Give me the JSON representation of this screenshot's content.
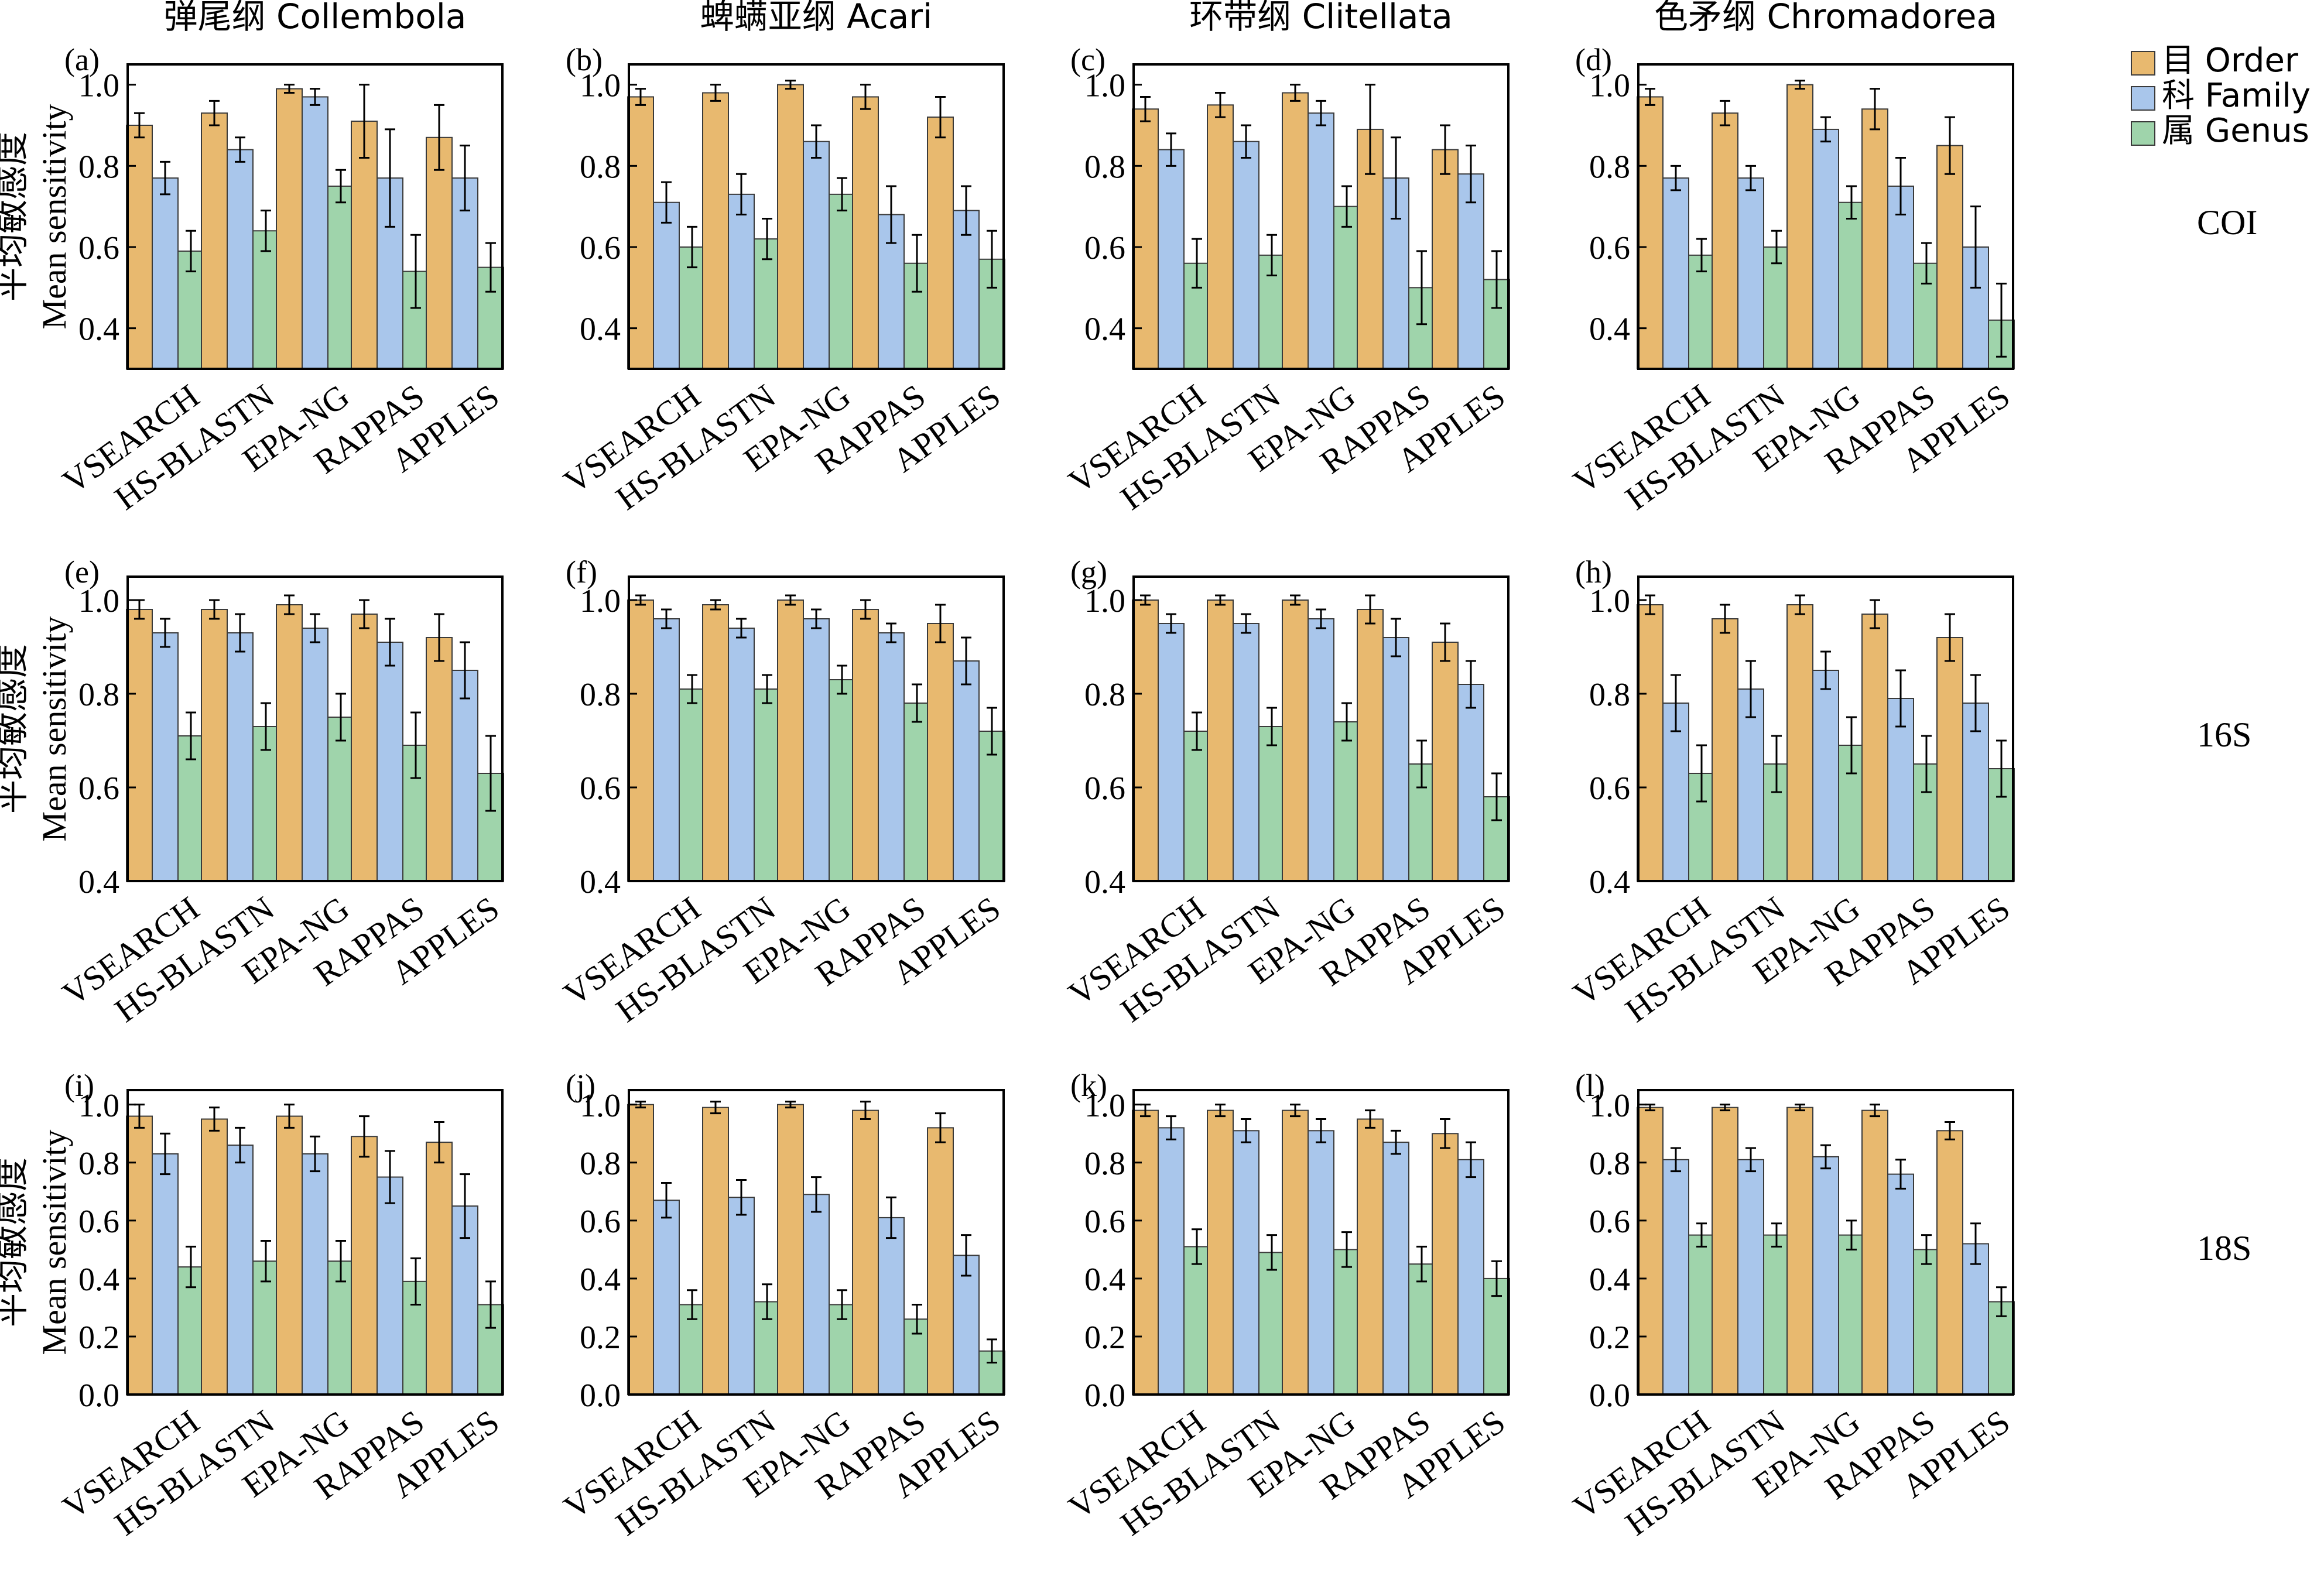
{
  "figure": {
    "column_titles": [
      "弹尾纲 Collembola",
      "蜱螨亚纲 Acari",
      "环带纲 Clitellata",
      "色矛纲 Chromadorea"
    ],
    "row_labels": [
      "COI",
      "16S",
      "18S"
    ],
    "ylabel_cn": "平均敏感度",
    "ylabel_en": "Mean sensitivity",
    "legend": [
      {
        "key": "order",
        "label": "目 Order",
        "color": "#E8B96F"
      },
      {
        "key": "family",
        "label": "科 Family",
        "color": "#A9C6EB"
      },
      {
        "key": "genus",
        "label": "属 Genus",
        "color": "#9FD4AB"
      }
    ]
  },
  "chart_data": [
    {
      "panel": "(a)",
      "type": "bar",
      "categories": [
        "VSEARCH",
        "HS-BLASTN",
        "EPA-NG",
        "RAPPAS",
        "APPLES"
      ],
      "ylim": [
        0.3,
        1.05
      ],
      "yticks": [
        0.4,
        0.6,
        0.8,
        1.0
      ],
      "series": [
        {
          "name": "目 Order",
          "values": [
            0.9,
            0.93,
            0.99,
            0.91,
            0.87
          ],
          "errors": [
            0.03,
            0.03,
            0.01,
            0.09,
            0.08
          ]
        },
        {
          "name": "科 Family",
          "values": [
            0.77,
            0.84,
            0.97,
            0.77,
            0.77
          ],
          "errors": [
            0.04,
            0.03,
            0.02,
            0.12,
            0.08
          ]
        },
        {
          "name": "属 Genus",
          "values": [
            0.59,
            0.64,
            0.75,
            0.54,
            0.55
          ],
          "errors": [
            0.05,
            0.05,
            0.04,
            0.09,
            0.06
          ]
        }
      ]
    },
    {
      "panel": "(b)",
      "type": "bar",
      "categories": [
        "VSEARCH",
        "HS-BLASTN",
        "EPA-NG",
        "RAPPAS",
        "APPLES"
      ],
      "ylim": [
        0.3,
        1.05
      ],
      "yticks": [
        0.4,
        0.6,
        0.8,
        1.0
      ],
      "series": [
        {
          "name": "目 Order",
          "values": [
            0.97,
            0.98,
            1.0,
            0.97,
            0.92
          ],
          "errors": [
            0.02,
            0.02,
            0.01,
            0.03,
            0.05
          ]
        },
        {
          "name": "科 Family",
          "values": [
            0.71,
            0.73,
            0.86,
            0.68,
            0.69
          ],
          "errors": [
            0.05,
            0.05,
            0.04,
            0.07,
            0.06
          ]
        },
        {
          "name": "属 Genus",
          "values": [
            0.6,
            0.62,
            0.73,
            0.56,
            0.57
          ],
          "errors": [
            0.05,
            0.05,
            0.04,
            0.07,
            0.07
          ]
        }
      ]
    },
    {
      "panel": "(c)",
      "type": "bar",
      "categories": [
        "VSEARCH",
        "HS-BLASTN",
        "EPA-NG",
        "RAPPAS",
        "APPLES"
      ],
      "ylim": [
        0.3,
        1.05
      ],
      "yticks": [
        0.4,
        0.6,
        0.8,
        1.0
      ],
      "series": [
        {
          "name": "目 Order",
          "values": [
            0.94,
            0.95,
            0.98,
            0.89,
            0.84
          ],
          "errors": [
            0.03,
            0.03,
            0.02,
            0.11,
            0.06
          ]
        },
        {
          "name": "科 Family",
          "values": [
            0.84,
            0.86,
            0.93,
            0.77,
            0.78
          ],
          "errors": [
            0.04,
            0.04,
            0.03,
            0.1,
            0.07
          ]
        },
        {
          "name": "属 Genus",
          "values": [
            0.56,
            0.58,
            0.7,
            0.5,
            0.52
          ],
          "errors": [
            0.06,
            0.05,
            0.05,
            0.09,
            0.07
          ]
        }
      ]
    },
    {
      "panel": "(d)",
      "type": "bar",
      "categories": [
        "VSEARCH",
        "HS-BLASTN",
        "EPA-NG",
        "RAPPAS",
        "APPLES"
      ],
      "ylim": [
        0.3,
        1.05
      ],
      "yticks": [
        0.4,
        0.6,
        0.8,
        1.0
      ],
      "series": [
        {
          "name": "目 Order",
          "values": [
            0.97,
            0.93,
            1.0,
            0.94,
            0.85
          ],
          "errors": [
            0.02,
            0.03,
            0.01,
            0.05,
            0.07
          ]
        },
        {
          "name": "科 Family",
          "values": [
            0.77,
            0.77,
            0.89,
            0.75,
            0.6
          ],
          "errors": [
            0.03,
            0.03,
            0.03,
            0.07,
            0.1
          ]
        },
        {
          "name": "属 Genus",
          "values": [
            0.58,
            0.6,
            0.71,
            0.56,
            0.42
          ],
          "errors": [
            0.04,
            0.04,
            0.04,
            0.05,
            0.09
          ]
        }
      ]
    },
    {
      "panel": "(e)",
      "type": "bar",
      "categories": [
        "VSEARCH",
        "HS-BLASTN",
        "EPA-NG",
        "RAPPAS",
        "APPLES"
      ],
      "ylim": [
        0.4,
        1.05
      ],
      "yticks": [
        0.4,
        0.6,
        0.8,
        1.0
      ],
      "series": [
        {
          "name": "目 Order",
          "values": [
            0.98,
            0.98,
            0.99,
            0.97,
            0.92
          ],
          "errors": [
            0.02,
            0.02,
            0.02,
            0.03,
            0.05
          ]
        },
        {
          "name": "科 Family",
          "values": [
            0.93,
            0.93,
            0.94,
            0.91,
            0.85
          ],
          "errors": [
            0.03,
            0.04,
            0.03,
            0.05,
            0.06
          ]
        },
        {
          "name": "属 Genus",
          "values": [
            0.71,
            0.73,
            0.75,
            0.69,
            0.63
          ],
          "errors": [
            0.05,
            0.05,
            0.05,
            0.07,
            0.08
          ]
        }
      ]
    },
    {
      "panel": "(f)",
      "type": "bar",
      "categories": [
        "VSEARCH",
        "HS-BLASTN",
        "EPA-NG",
        "RAPPAS",
        "APPLES"
      ],
      "ylim": [
        0.4,
        1.05
      ],
      "yticks": [
        0.4,
        0.6,
        0.8,
        1.0
      ],
      "series": [
        {
          "name": "目 Order",
          "values": [
            1.0,
            0.99,
            1.0,
            0.98,
            0.95
          ],
          "errors": [
            0.01,
            0.01,
            0.01,
            0.02,
            0.04
          ]
        },
        {
          "name": "科 Family",
          "values": [
            0.96,
            0.94,
            0.96,
            0.93,
            0.87
          ],
          "errors": [
            0.02,
            0.02,
            0.02,
            0.02,
            0.05
          ]
        },
        {
          "name": "属 Genus",
          "values": [
            0.81,
            0.81,
            0.83,
            0.78,
            0.72
          ],
          "errors": [
            0.03,
            0.03,
            0.03,
            0.04,
            0.05
          ]
        }
      ]
    },
    {
      "panel": "(g)",
      "type": "bar",
      "categories": [
        "VSEARCH",
        "HS-BLASTN",
        "EPA-NG",
        "RAPPAS",
        "APPLES"
      ],
      "ylim": [
        0.4,
        1.05
      ],
      "yticks": [
        0.4,
        0.6,
        0.8,
        1.0
      ],
      "series": [
        {
          "name": "目 Order",
          "values": [
            1.0,
            1.0,
            1.0,
            0.98,
            0.91
          ],
          "errors": [
            0.01,
            0.01,
            0.01,
            0.03,
            0.04
          ]
        },
        {
          "name": "科 Family",
          "values": [
            0.95,
            0.95,
            0.96,
            0.92,
            0.82
          ],
          "errors": [
            0.02,
            0.02,
            0.02,
            0.04,
            0.05
          ]
        },
        {
          "name": "属 Genus",
          "values": [
            0.72,
            0.73,
            0.74,
            0.65,
            0.58
          ],
          "errors": [
            0.04,
            0.04,
            0.04,
            0.05,
            0.05
          ]
        }
      ]
    },
    {
      "panel": "(h)",
      "type": "bar",
      "categories": [
        "VSEARCH",
        "HS-BLASTN",
        "EPA-NG",
        "RAPPAS",
        "APPLES"
      ],
      "ylim": [
        0.4,
        1.05
      ],
      "yticks": [
        0.4,
        0.6,
        0.8,
        1.0
      ],
      "series": [
        {
          "name": "目 Order",
          "values": [
            0.99,
            0.96,
            0.99,
            0.97,
            0.92
          ],
          "errors": [
            0.02,
            0.03,
            0.02,
            0.03,
            0.05
          ]
        },
        {
          "name": "科 Family",
          "values": [
            0.78,
            0.81,
            0.85,
            0.79,
            0.78
          ],
          "errors": [
            0.06,
            0.06,
            0.04,
            0.06,
            0.06
          ]
        },
        {
          "name": "属 Genus",
          "values": [
            0.63,
            0.65,
            0.69,
            0.65,
            0.64
          ],
          "errors": [
            0.06,
            0.06,
            0.06,
            0.06,
            0.06
          ]
        }
      ]
    },
    {
      "panel": "(i)",
      "type": "bar",
      "categories": [
        "VSEARCH",
        "HS-BLASTN",
        "EPA-NG",
        "RAPPAS",
        "APPLES"
      ],
      "ylim": [
        0.0,
        1.05
      ],
      "yticks": [
        0.0,
        0.2,
        0.4,
        0.6,
        0.8,
        1.0
      ],
      "series": [
        {
          "name": "目 Order",
          "values": [
            0.96,
            0.95,
            0.96,
            0.89,
            0.87
          ],
          "errors": [
            0.04,
            0.04,
            0.04,
            0.07,
            0.07
          ]
        },
        {
          "name": "科 Family",
          "values": [
            0.83,
            0.86,
            0.83,
            0.75,
            0.65
          ],
          "errors": [
            0.07,
            0.06,
            0.06,
            0.09,
            0.11
          ]
        },
        {
          "name": "属 Genus",
          "values": [
            0.44,
            0.46,
            0.46,
            0.39,
            0.31
          ],
          "errors": [
            0.07,
            0.07,
            0.07,
            0.08,
            0.08
          ]
        }
      ]
    },
    {
      "panel": "(j)",
      "type": "bar",
      "categories": [
        "VSEARCH",
        "HS-BLASTN",
        "EPA-NG",
        "RAPPAS",
        "APPLES"
      ],
      "ylim": [
        0.0,
        1.05
      ],
      "yticks": [
        0.0,
        0.2,
        0.4,
        0.6,
        0.8,
        1.0
      ],
      "series": [
        {
          "name": "目 Order",
          "values": [
            1.0,
            0.99,
            1.0,
            0.98,
            0.92
          ],
          "errors": [
            0.01,
            0.02,
            0.01,
            0.03,
            0.05
          ]
        },
        {
          "name": "科 Family",
          "values": [
            0.67,
            0.68,
            0.69,
            0.61,
            0.48
          ],
          "errors": [
            0.06,
            0.06,
            0.06,
            0.07,
            0.07
          ]
        },
        {
          "name": "属 Genus",
          "values": [
            0.31,
            0.32,
            0.31,
            0.26,
            0.15
          ],
          "errors": [
            0.05,
            0.06,
            0.05,
            0.05,
            0.04
          ]
        }
      ]
    },
    {
      "panel": "(k)",
      "type": "bar",
      "categories": [
        "VSEARCH",
        "HS-BLASTN",
        "EPA-NG",
        "RAPPAS",
        "APPLES"
      ],
      "ylim": [
        0.0,
        1.05
      ],
      "yticks": [
        0.0,
        0.2,
        0.4,
        0.6,
        0.8,
        1.0
      ],
      "series": [
        {
          "name": "目 Order",
          "values": [
            0.98,
            0.98,
            0.98,
            0.95,
            0.9
          ],
          "errors": [
            0.02,
            0.02,
            0.02,
            0.03,
            0.05
          ]
        },
        {
          "name": "科 Family",
          "values": [
            0.92,
            0.91,
            0.91,
            0.87,
            0.81
          ],
          "errors": [
            0.04,
            0.04,
            0.04,
            0.04,
            0.06
          ]
        },
        {
          "name": "属 Genus",
          "values": [
            0.51,
            0.49,
            0.5,
            0.45,
            0.4
          ],
          "errors": [
            0.06,
            0.06,
            0.06,
            0.06,
            0.06
          ]
        }
      ]
    },
    {
      "panel": "(l)",
      "type": "bar",
      "categories": [
        "VSEARCH",
        "HS-BLASTN",
        "EPA-NG",
        "RAPPAS",
        "APPLES"
      ],
      "ylim": [
        0.0,
        1.05
      ],
      "yticks": [
        0.0,
        0.2,
        0.4,
        0.6,
        0.8,
        1.0
      ],
      "series": [
        {
          "name": "目 Order",
          "values": [
            0.99,
            0.99,
            0.99,
            0.98,
            0.91
          ],
          "errors": [
            0.01,
            0.01,
            0.01,
            0.02,
            0.03
          ]
        },
        {
          "name": "科 Family",
          "values": [
            0.81,
            0.81,
            0.82,
            0.76,
            0.52
          ],
          "errors": [
            0.04,
            0.04,
            0.04,
            0.05,
            0.07
          ]
        },
        {
          "name": "属 Genus",
          "values": [
            0.55,
            0.55,
            0.55,
            0.5,
            0.32
          ],
          "errors": [
            0.04,
            0.04,
            0.05,
            0.05,
            0.05
          ]
        }
      ]
    }
  ]
}
